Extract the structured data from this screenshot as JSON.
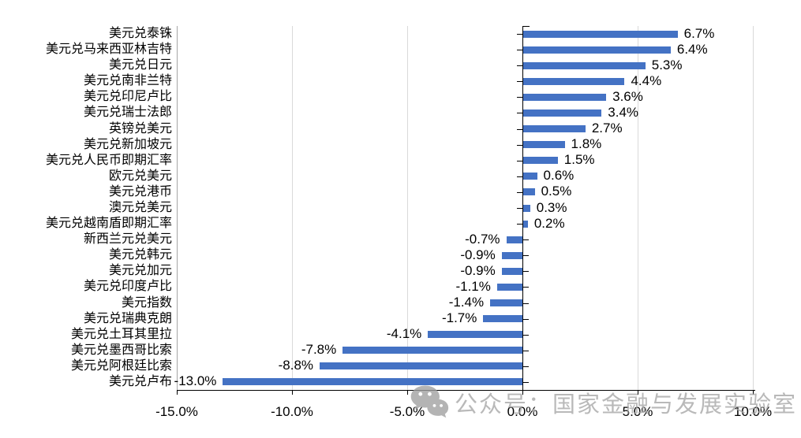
{
  "chart_data": {
    "type": "bar",
    "orientation": "horizontal",
    "title": "",
    "xlabel": "",
    "ylabel": "",
    "grid": true,
    "legend": false,
    "xlim": [
      -15,
      10
    ],
    "categories": [
      "美元兑泰铢",
      "美元兑马来西亚林吉特",
      "美元兑日元",
      "美元兑南非兰特",
      "美元兑印尼卢比",
      "美元兑瑞士法郎",
      "英镑兑美元",
      "美元兑新加坡元",
      "美元兑人民币即期汇率",
      "欧元兑美元",
      "美元兑港币",
      "澳元兑美元",
      "美元兑越南盾即期汇率",
      "新西兰元兑美元",
      "美元兑韩元",
      "美元兑加元",
      "美元兑印度卢比",
      "美元指数",
      "美元兑瑞典克朗",
      "美元兑土耳其里拉",
      "美元兑墨西哥比索",
      "美元兑阿根廷比索",
      "美元兑卢布"
    ],
    "values": [
      6.7,
      6.4,
      5.3,
      4.4,
      3.6,
      3.4,
      2.7,
      1.8,
      1.5,
      0.6,
      0.5,
      0.3,
      0.2,
      -0.7,
      -0.9,
      -0.9,
      -1.1,
      -1.4,
      -1.7,
      -4.1,
      -7.8,
      -8.8,
      -13.0
    ],
    "data_labels": [
      "6.7%",
      "6.4%",
      "5.3%",
      "4.4%",
      "3.6%",
      "3.4%",
      "2.7%",
      "1.8%",
      "1.5%",
      "0.6%",
      "0.5%",
      "0.3%",
      "0.2%",
      "-0.7%",
      "-0.9%",
      "-0.9%",
      "-1.1%",
      "-1.4%",
      "-1.7%",
      "-4.1%",
      "-7.8%",
      "-8.8%",
      "-13.0%"
    ],
    "x_ticks": [
      {
        "value": -15,
        "label": "-15.0%"
      },
      {
        "value": -10,
        "label": "-10.0%"
      },
      {
        "value": -5,
        "label": "-5.0%"
      },
      {
        "value": 0,
        "label": "0.0%"
      },
      {
        "value": 5,
        "label": "5.0%"
      },
      {
        "value": 10,
        "label": "10.0%"
      }
    ],
    "colors": {
      "bar": "#4472C4",
      "gridline": "#D9D9D9",
      "plot_border": "#A6A6A6",
      "axis": "#000000",
      "text": "#000000"
    }
  },
  "watermark": {
    "icon": "wechat-icon",
    "text": "公众号：国家金融与发展实验室",
    "color": "#a6a6a6"
  }
}
